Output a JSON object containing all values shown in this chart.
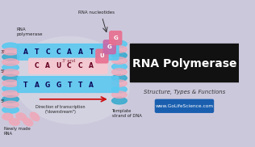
{
  "bg_color": "#ccc8dc",
  "title_text": "RNA Polymerase",
  "title_color": "#ffffff",
  "subtitle_text": "Structure, Types & Functions",
  "url_text": "www.GoLifeScience.com",
  "url_bg": "#1a5faf",
  "url_color": "#ffffff",
  "dna_blue": "#5bc8f0",
  "dna_blue2": "#3aaccf",
  "dna_pink": "#f0a8b8",
  "rna_pink_light": "#f5c8d0",
  "rna_pink_dark": "#e06880",
  "nucleotide_pill": "#e090a8",
  "ellipse_bg": "#d8d8e8",
  "black_bar_color": "#111111",
  "top_dna_seq": [
    "A",
    "T",
    "C",
    "C",
    "A",
    "A",
    "T"
  ],
  "mid_rna_seq": [
    "C",
    "A",
    "U",
    "C",
    "C",
    "A"
  ],
  "bot_dna_seq": [
    "T",
    "A",
    "G",
    "G",
    "T",
    "T",
    "A"
  ],
  "rna_out_seq": [
    "U",
    "G",
    "G"
  ],
  "rna_out_colors": [
    "#e87090",
    "#c868a8",
    "#e87090"
  ],
  "label_color": "#222222",
  "dna_text_color": "#0a0a5a",
  "rna_text_color": "#660022"
}
